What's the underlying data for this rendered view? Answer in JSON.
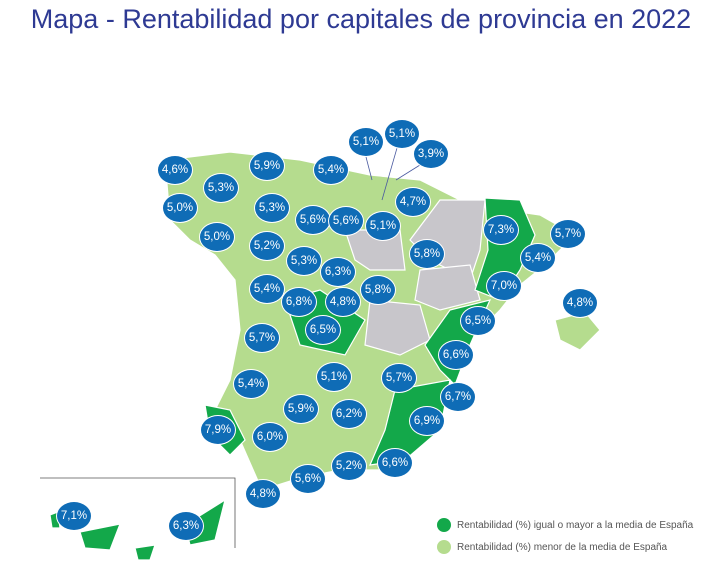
{
  "title": "Mapa - Rentabilidad por capitales de provincia en 2022",
  "colors": {
    "above_average": "#13a84a",
    "below_average": "#b5dc8e",
    "no_data": "#c8c6cb",
    "bubble": "#0f6cb6",
    "title": "#2e3a93"
  },
  "legend": {
    "above": "Rentabilidad (%) igual o mayor a la media de España",
    "below": "Rentabilidad (%) menor de la media de España"
  },
  "values": [
    "4,6%",
    "5,3%",
    "5,9%",
    "5,4%",
    "5,1%",
    "5,1%",
    "3,9%",
    "5,0%",
    "5,3%",
    "5,6%",
    "5,6%",
    "5,1%",
    "4,7%",
    "5,0%",
    "5,2%",
    "5,3%",
    "6,3%",
    "5,8%",
    "5,4%",
    "6,8%",
    "4,8%",
    "5,8%",
    "7,3%",
    "5,7%",
    "5,4%",
    "7,0%",
    "4,8%",
    "6,5%",
    "5,7%",
    "6,5%",
    "6,6%",
    "5,1%",
    "5,7%",
    "5,4%",
    "6,7%",
    "5,9%",
    "6,2%",
    "6,9%",
    "7,9%",
    "6,0%",
    "6,6%",
    "5,2%",
    "5,6%",
    "4,8%",
    "7,1%",
    "6,3%"
  ]
}
